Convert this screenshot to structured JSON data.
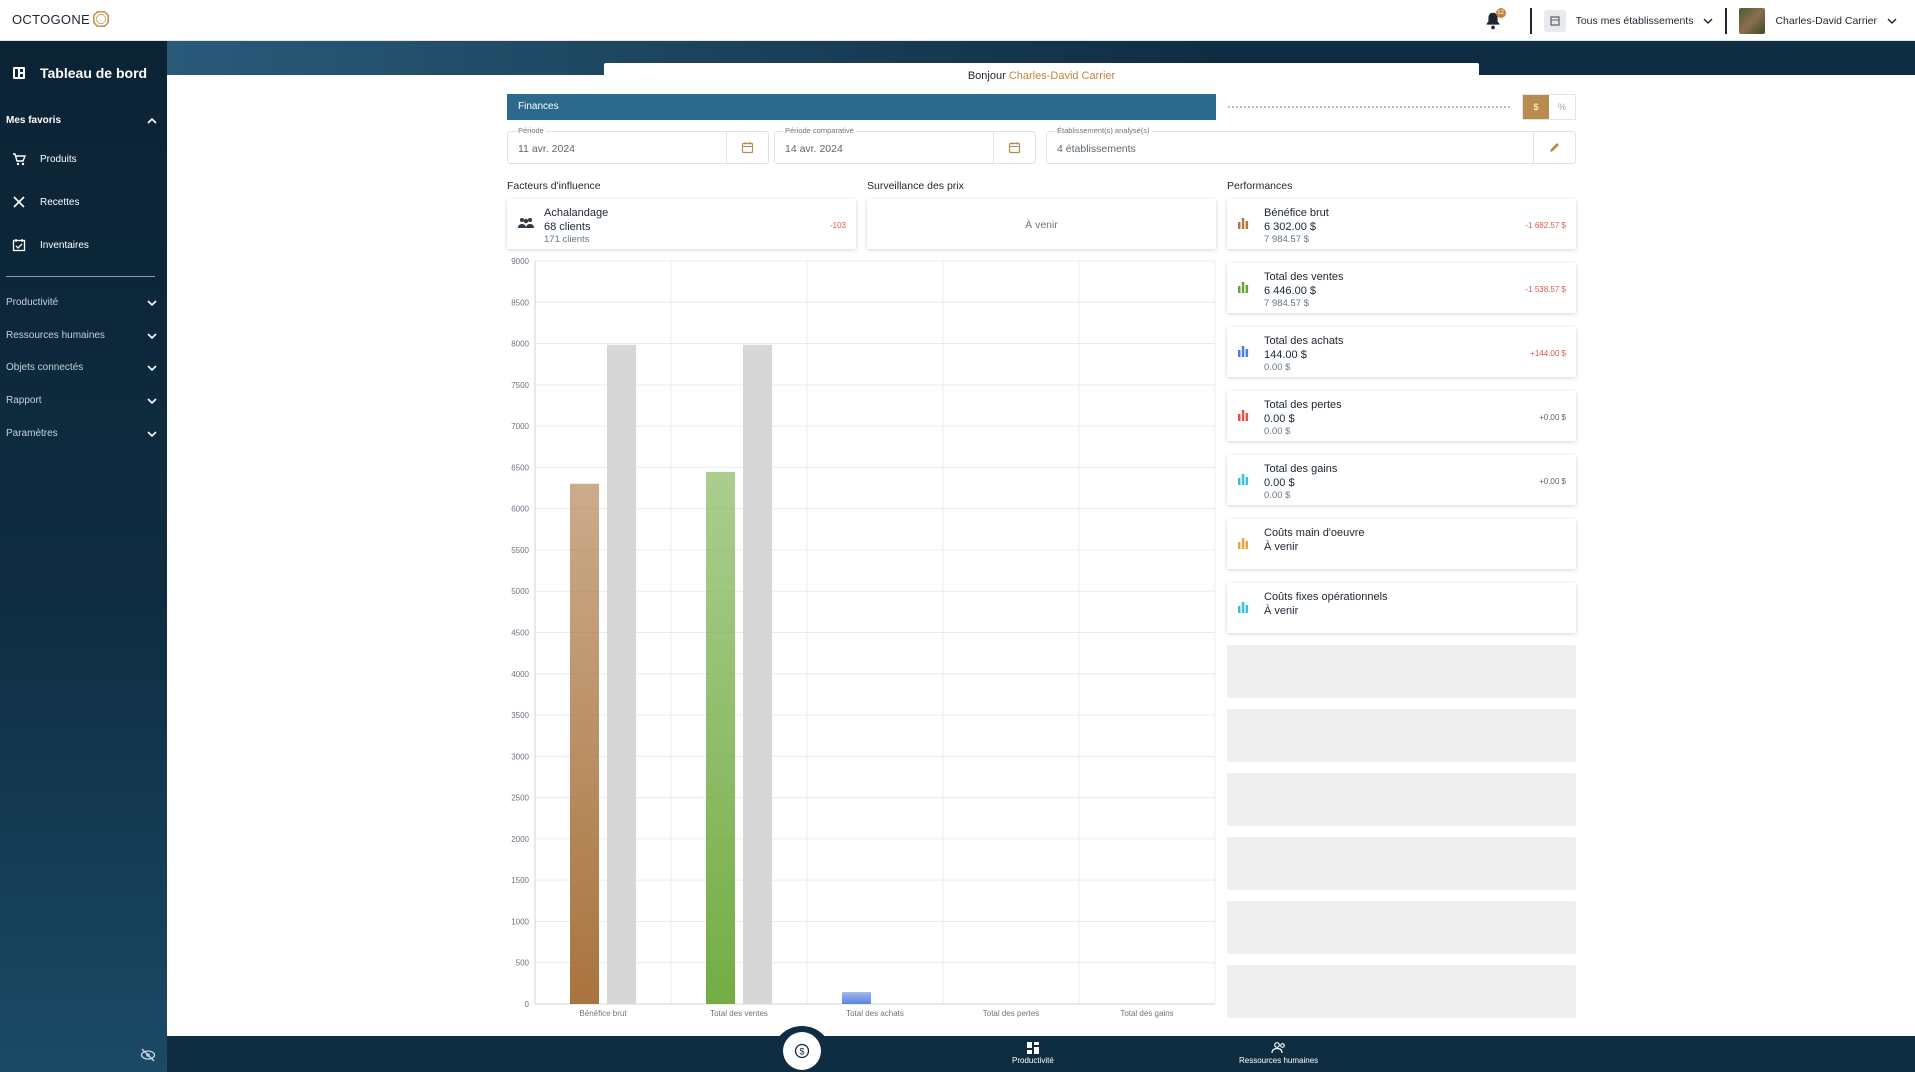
{
  "header": {
    "logo_text": "OCTOGONE",
    "notification_count": "12",
    "establishment_selector": "Tous mes établissements",
    "user_name": "Charles-David Carrier"
  },
  "sidebar": {
    "title": "Tableau de bord",
    "favorites_label": "Mes favoris",
    "favorites": [
      {
        "label": "Produits",
        "icon": "cart-icon"
      },
      {
        "label": "Recettes",
        "icon": "utensils-icon"
      },
      {
        "label": "Inventaires",
        "icon": "inventory-icon"
      }
    ],
    "sections": [
      "Productivité",
      "Ressources humaines",
      "Objets connectés",
      "Rapport",
      "Paramètres"
    ]
  },
  "greeting": {
    "prefix": "Bonjour",
    "name": "Charles-David Carrier"
  },
  "finance": {
    "tab_label": "Finances",
    "toggle_dollar": "$",
    "toggle_percent": "%",
    "period_label": "Période",
    "period_value": "11 avr. 2024",
    "compare_label": "Période comparative",
    "compare_value": "14 avr. 2024",
    "estab_label": "Établissement(s) analysé(s)",
    "estab_value": "4 établissements"
  },
  "columns": {
    "influence": "Facteurs d'influence",
    "price_watch": "Surveillance des prix",
    "performance": "Performances"
  },
  "influence_card": {
    "title": "Achalandage",
    "value": "68 clients",
    "compare": "171 clients",
    "delta": "-103"
  },
  "price_watch_card": {
    "text": "À venir"
  },
  "performance_cards": [
    {
      "title": "Bénéfice brut",
      "value": "6 302.00 $",
      "compare": "7 984.57 $",
      "delta": "-1 682.57 $",
      "delta_type": "neg",
      "color": "#b07a3e"
    },
    {
      "title": "Total des ventes",
      "value": "6 446.00 $",
      "compare": "7 984.57 $",
      "delta": "-1 538.57 $",
      "delta_type": "neg",
      "color": "#6aa33a"
    },
    {
      "title": "Total des achats",
      "value": "144.00 $",
      "compare": "0.00 $",
      "delta": "+144.00 $",
      "delta_type": "neg",
      "color": "#4a7de0"
    },
    {
      "title": "Total des pertes",
      "value": "0.00 $",
      "compare": "0.00 $",
      "delta": "+0.00 $",
      "delta_type": "pos",
      "color": "#e0554a"
    },
    {
      "title": "Total des gains",
      "value": "0.00 $",
      "compare": "0.00 $",
      "delta": "+0.00 $",
      "delta_type": "pos",
      "color": "#3cc0d8"
    },
    {
      "title": "Coûts main d'oeuvre",
      "value": "À venir",
      "compare": "",
      "delta": "",
      "delta_type": "pos",
      "color": "#e8a23c"
    },
    {
      "title": "Coûts fixes opérationnels",
      "value": "À venir",
      "compare": "",
      "delta": "",
      "delta_type": "pos",
      "color": "#3cc0d8"
    }
  ],
  "bottom_nav": [
    {
      "label": "Productivité",
      "icon": "dashboard-icon"
    },
    {
      "label": "Ressources humaines",
      "icon": "people-icon"
    }
  ],
  "chart_data": {
    "type": "bar",
    "categories": [
      "Bénéfice brut",
      "Total des ventes",
      "Total des achats",
      "Total des pertes",
      "Total des gains"
    ],
    "series": [
      {
        "values": [
          6302,
          6446,
          144,
          0,
          0
        ],
        "colors": [
          "#a8743f",
          "#73ad44",
          "#5b85de",
          "#e0554a",
          "#3cc0d8"
        ]
      },
      {
        "values": [
          7984.57,
          7984.57,
          0,
          0,
          0
        ],
        "color": "#d7d7d7"
      }
    ],
    "ylim": [
      0,
      9000
    ],
    "yticks": [
      0,
      500,
      1000,
      1500,
      2000,
      2500,
      3000,
      3500,
      4000,
      4500,
      5000,
      5500,
      6000,
      6500,
      7000,
      7500,
      8000,
      8500,
      9000
    ],
    "grid": true
  }
}
